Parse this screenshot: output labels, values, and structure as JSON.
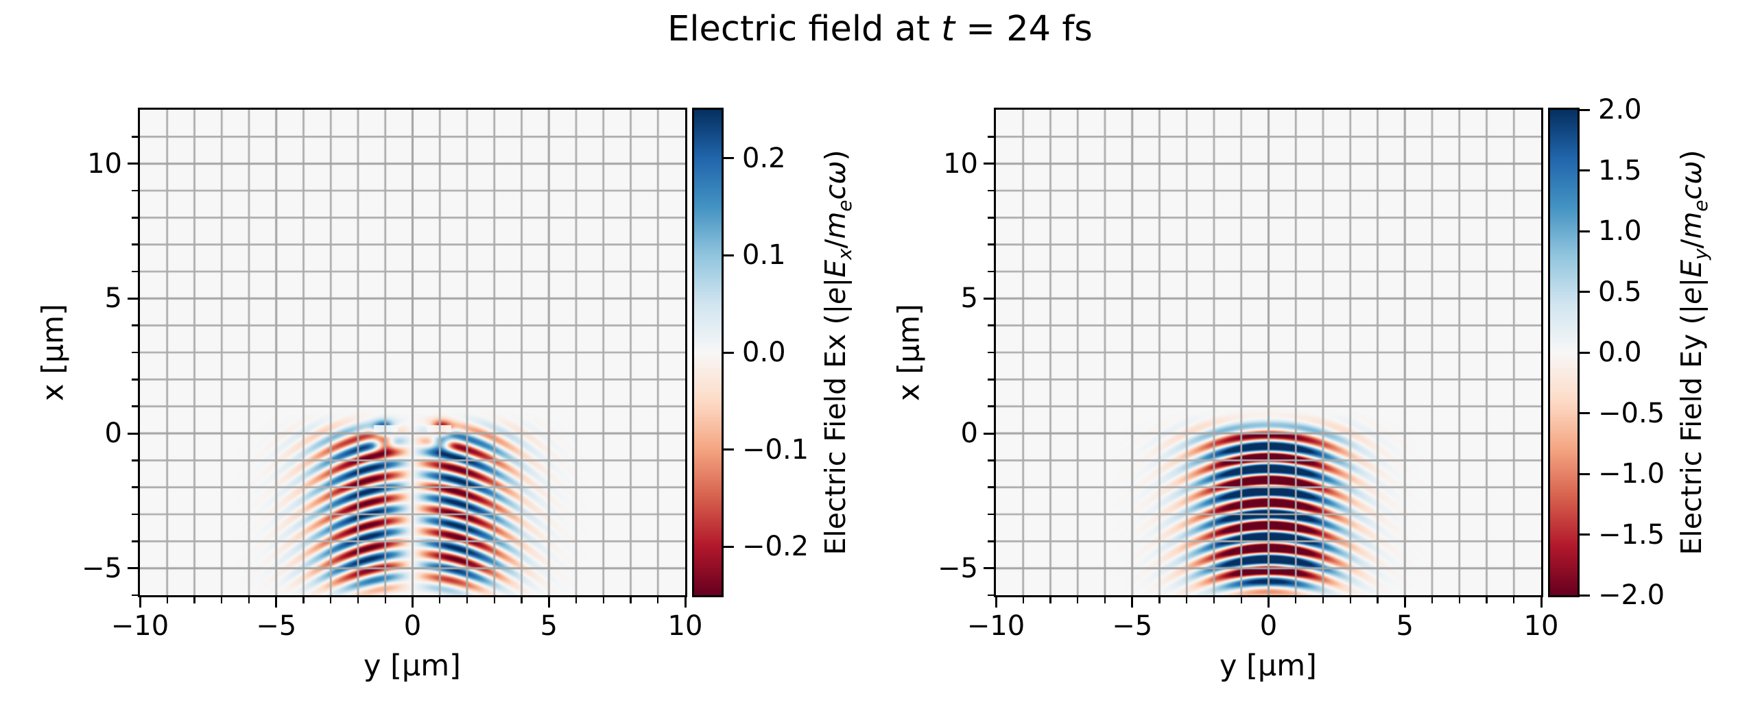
{
  "figure": {
    "title_plain": "Electric field at t = 24 fs",
    "title_rich": [
      {
        "t": "Electric field at ",
        "s": "n"
      },
      {
        "t": "t",
        "s": "i"
      },
      {
        "t": " = 24 fs",
        "s": "n"
      }
    ],
    "time_fs": 24,
    "background": "#ffffff"
  },
  "style": {
    "grid_color": "#ababab",
    "grid_major_color": "#a2a2a2",
    "spine_color": "#000000",
    "zero_field_color": "#f7f6f5",
    "text_color": "#000000"
  },
  "plots": [
    {
      "key": "Ex",
      "xlabel": "y [μm]",
      "ylabel": "x [μm]",
      "x_tick_labels": [
        "−10",
        "−5",
        "0",
        "5",
        "10"
      ],
      "y_tick_labels": [
        "10",
        "5",
        "0",
        "−5"
      ],
      "colorbar": {
        "tick_labels": [
          "0.2",
          "0.1",
          "0.0",
          "−0.1",
          "−0.2"
        ],
        "label_plain": "Electric Field Ex (|e|Ex/mecω)",
        "label_rich": [
          {
            "t": "Electric Field Ex (|",
            "s": "n"
          },
          {
            "t": "e",
            "s": "i"
          },
          {
            "t": "|",
            "s": "n"
          },
          {
            "t": "E",
            "s": "i"
          },
          {
            "t": "x",
            "s": "subi"
          },
          {
            "t": "/",
            "s": "n"
          },
          {
            "t": "m",
            "s": "i"
          },
          {
            "t": "e",
            "s": "subi"
          },
          {
            "t": "c",
            "s": "i"
          },
          {
            "t": "ω",
            "s": "i"
          },
          {
            "t": ")",
            "s": "n"
          }
        ]
      }
    },
    {
      "key": "Ey",
      "xlabel": "y [μm]",
      "ylabel": "x [μm]",
      "x_tick_labels": [
        "−10",
        "−5",
        "0",
        "5",
        "10"
      ],
      "y_tick_labels": [
        "10",
        "5",
        "0",
        "−5"
      ],
      "colorbar": {
        "tick_labels": [
          "2.0",
          "1.5",
          "1.0",
          "0.5",
          "0.0",
          "−0.5",
          "−1.0",
          "−1.5",
          "−2.0"
        ],
        "label_plain": "Electric Field Ey (|e|Ey/mecω)",
        "label_rich": [
          {
            "t": "Electric Field Ey (|",
            "s": "n"
          },
          {
            "t": "e",
            "s": "i"
          },
          {
            "t": "|",
            "s": "n"
          },
          {
            "t": "E",
            "s": "i"
          },
          {
            "t": "y",
            "s": "subi"
          },
          {
            "t": "/",
            "s": "n"
          },
          {
            "t": "m",
            "s": "i"
          },
          {
            "t": "e",
            "s": "subi"
          },
          {
            "t": "c",
            "s": "i"
          },
          {
            "t": "ω",
            "s": "i"
          },
          {
            "t": ")",
            "s": "n"
          }
        ]
      }
    }
  ],
  "chart_data": [
    {
      "type": "heatmap",
      "name": "Electric Field Ex",
      "xlabel": "y [μm]",
      "ylabel": "x [μm]",
      "x_range": [
        -10,
        10
      ],
      "y_range": [
        -6,
        12
      ],
      "x_major_ticks": [
        -10,
        -5,
        0,
        5,
        10
      ],
      "y_major_ticks": [
        10,
        5,
        0,
        -5
      ],
      "minor_tick_step_um": 1,
      "grid_step_um": 1,
      "grid_on": true,
      "colormap": "RdBu",
      "colormap_stops": [
        "#67001f",
        "#b2182b",
        "#d6604d",
        "#f4a582",
        "#fddbc7",
        "#f7f7f7",
        "#d1e5f0",
        "#92c5de",
        "#4393c3",
        "#2166ac",
        "#053061"
      ],
      "vmin": -0.25,
      "vmax": 0.25,
      "colorbar_tick_values": [
        0.2,
        0.1,
        0.0,
        -0.1,
        -0.2
      ],
      "field_model": {
        "structure": "antisymmetric",
        "amplitude": 0.38,
        "wavelength_um": 0.84,
        "pulse_center_um": -2.8,
        "pulse_flat_halflength_um": 3.0,
        "flattop_power": 8,
        "transverse_scale_um": 2.35,
        "transverse_norm_um": 1.45,
        "curvature_um": 12,
        "phase_offset_um": 0.05,
        "carrier": "sin",
        "dipoles": {
          "x0": -0.1,
          "y0": 1.05,
          "strength": 2.0,
          "width2": 0.12
        },
        "mask_streak": {
          "x_center": 0.18,
          "x_halfwidth": 0.13,
          "y_min": 0.55,
          "y_max": 1.42,
          "factor": 0.08
        }
      }
    },
    {
      "type": "heatmap",
      "name": "Electric Field Ey",
      "xlabel": "y [μm]",
      "ylabel": "x [μm]",
      "x_range": [
        -10,
        10
      ],
      "y_range": [
        -6,
        12
      ],
      "x_major_ticks": [
        -10,
        -5,
        0,
        5,
        10
      ],
      "y_major_ticks": [
        10,
        5,
        0,
        -5
      ],
      "minor_tick_step_um": 1,
      "grid_step_um": 1,
      "grid_on": true,
      "colormap": "RdBu",
      "colormap_stops": [
        "#67001f",
        "#b2182b",
        "#d6604d",
        "#f4a582",
        "#fddbc7",
        "#f7f7f7",
        "#d1e5f0",
        "#92c5de",
        "#4393c3",
        "#2166ac",
        "#053061"
      ],
      "vmin": -2.0,
      "vmax": 2.0,
      "colorbar_tick_values": [
        2.0,
        1.5,
        1.0,
        0.5,
        0.0,
        -0.5,
        -1.0,
        -1.5,
        -2.0
      ],
      "field_model": {
        "structure": "symmetric",
        "amplitude": 3.4,
        "wavelength_um": 0.84,
        "pulse_center_um": -2.8,
        "pulse_flat_halflength_um": 3.0,
        "flattop_power": 8,
        "transverse_scale_um": 2.3,
        "curvature_um": 12,
        "phase_offset_um": 0.05,
        "carrier": "cos"
      }
    }
  ]
}
